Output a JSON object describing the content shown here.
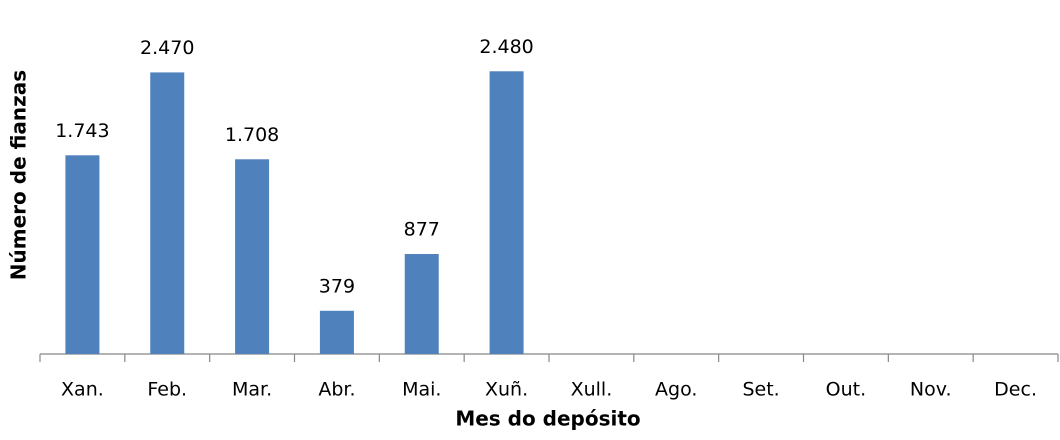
{
  "chart_data": {
    "type": "bar",
    "x_label": "Mes do depósito",
    "y_label": "Número de fianzas",
    "categories": [
      "Xan.",
      "Feb.",
      "Mar.",
      "Abr.",
      "Mai.",
      "Xuñ.",
      "Xull.",
      "Ago.",
      "Set.",
      "Out.",
      "Nov.",
      "Dec."
    ],
    "values": [
      1743,
      2470,
      1708,
      379,
      877,
      2480,
      null,
      null,
      null,
      null,
      null,
      null
    ],
    "value_labels": [
      "1.743",
      "2.470",
      "1.708",
      "379",
      "877",
      "2.480",
      null,
      null,
      null,
      null,
      null,
      null
    ],
    "color": "#4f81bd",
    "ylim": [
      0,
      2500
    ]
  }
}
